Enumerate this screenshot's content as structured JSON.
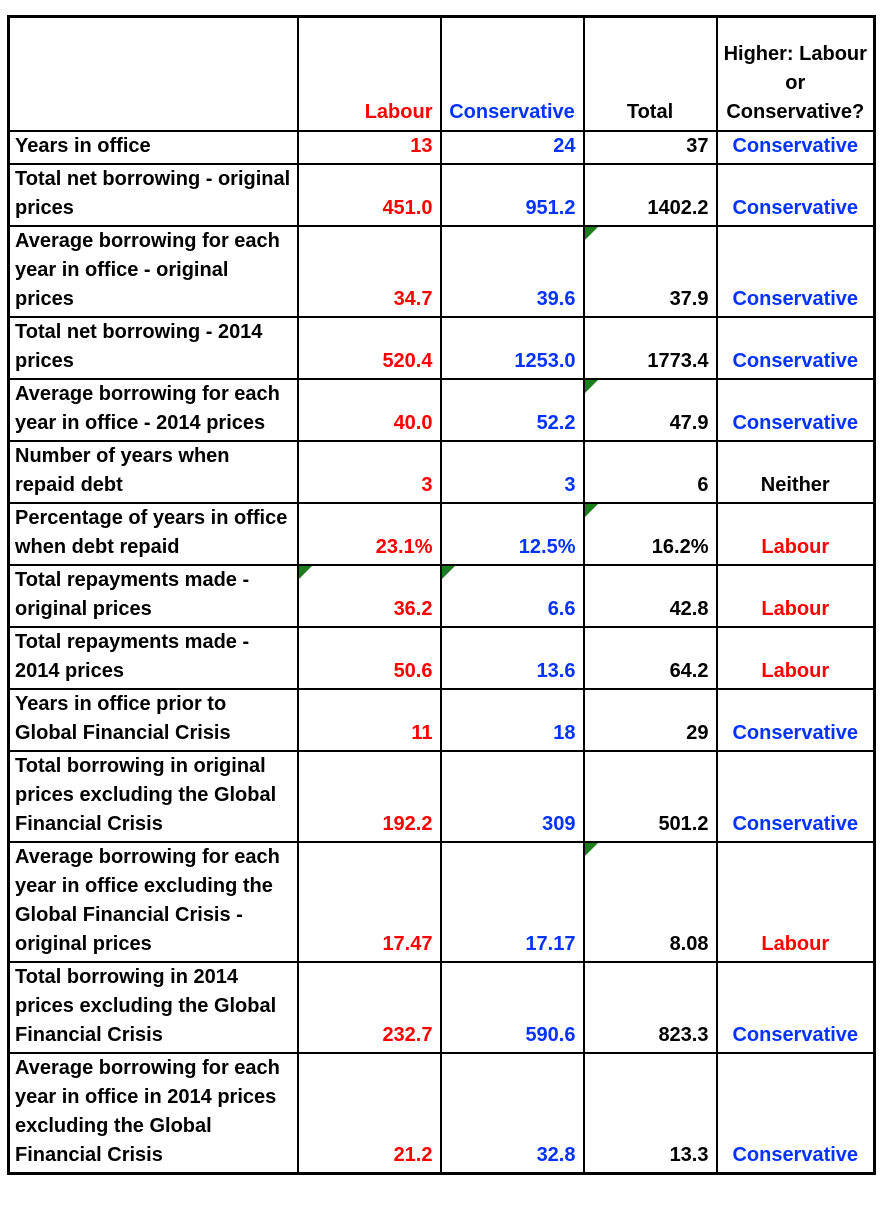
{
  "palette": {
    "labour_red": "#FF0000",
    "conservative_blue": "#0432FF",
    "neutral_black": "#000000",
    "flag_green": "#1E7B1E",
    "border_black": "#000000",
    "background": "#FFFFFF"
  },
  "header": {
    "corner": "",
    "labour": "Labour",
    "conservative": "Conservative",
    "total": "Total",
    "higher": "Higher: Labour or Conservative?"
  },
  "rows": [
    {
      "label": "Years in office",
      "labour": "13",
      "conservative": "24",
      "total": "37",
      "higher": "Conservative",
      "flags": []
    },
    {
      "label": "Total net borrowing - original prices",
      "labour": "451.0",
      "conservative": "951.2",
      "total": "1402.2",
      "higher": "Conservative",
      "flags": []
    },
    {
      "label": "Average borrowing for each year in office - original prices",
      "labour": "34.7",
      "conservative": "39.6",
      "total": "37.9",
      "higher": "Conservative",
      "flags": [
        "total"
      ]
    },
    {
      "label": "Total net borrowing - 2014 prices",
      "labour": "520.4",
      "conservative": "1253.0",
      "total": "1773.4",
      "higher": "Conservative",
      "flags": []
    },
    {
      "label": "Average borrowing for each year in office - 2014 prices",
      "labour": "40.0",
      "conservative": "52.2",
      "total": "47.9",
      "higher": "Conservative",
      "flags": [
        "total"
      ]
    },
    {
      "label": "Number of years when repaid debt",
      "labour": "3",
      "conservative": "3",
      "total": "6",
      "higher": "Neither",
      "flags": []
    },
    {
      "label": "Percentage of years in office when debt repaid",
      "labour": "23.1%",
      "conservative": "12.5%",
      "total": "16.2%",
      "higher": "Labour",
      "flags": [
        "total"
      ]
    },
    {
      "label": "Total repayments made - original prices",
      "labour": "36.2",
      "conservative": "6.6",
      "total": "42.8",
      "higher": "Labour",
      "flags": [
        "labour",
        "conservative"
      ]
    },
    {
      "label": "Total repayments made - 2014 prices",
      "labour": "50.6",
      "conservative": "13.6",
      "total": "64.2",
      "higher": "Labour",
      "flags": []
    },
    {
      "label": "Years in office prior to Global Financial Crisis",
      "labour": "11",
      "conservative": "18",
      "total": "29",
      "higher": "Conservative",
      "flags": []
    },
    {
      "label": "Total borrowing in original prices excluding the Global Financial Crisis",
      "labour": "192.2",
      "conservative": "309",
      "total": "501.2",
      "higher": "Conservative",
      "flags": []
    },
    {
      "label": "Average borrowing for each year in  office excluding the Global Financial Crisis - original prices",
      "labour": "17.47",
      "conservative": "17.17",
      "total": "8.08",
      "higher": "Labour",
      "flags": [
        "total"
      ]
    },
    {
      "label": "Total borrowing in 2014 prices excluding the Global Financial Crisis",
      "labour": "232.7",
      "conservative": "590.6",
      "total": "823.3",
      "higher": "Conservative",
      "flags": []
    },
    {
      "label": "Average borrowing for each year in office in 2014 prices excluding the Global Financial Crisis",
      "labour": "21.2",
      "conservative": "32.8",
      "total": "13.3",
      "higher": "Conservative",
      "flags": []
    }
  ],
  "chart_data": {
    "type": "table",
    "columns": [
      "",
      "Labour",
      "Conservative",
      "Total",
      "Higher: Labour or Conservative?"
    ],
    "rows": [
      [
        "Years in office",
        13,
        24,
        37,
        "Conservative"
      ],
      [
        "Total net borrowing - original prices",
        451.0,
        951.2,
        1402.2,
        "Conservative"
      ],
      [
        "Average borrowing for each year in office - original prices",
        34.7,
        39.6,
        37.9,
        "Conservative"
      ],
      [
        "Total net borrowing - 2014 prices",
        520.4,
        1253.0,
        1773.4,
        "Conservative"
      ],
      [
        "Average borrowing for each year in office - 2014 prices",
        40.0,
        52.2,
        47.9,
        "Conservative"
      ],
      [
        "Number of years when repaid debt",
        3,
        3,
        6,
        "Neither"
      ],
      [
        "Percentage of years in office when debt repaid",
        "23.1%",
        "12.5%",
        "16.2%",
        "Labour"
      ],
      [
        "Total repayments made - original prices",
        36.2,
        6.6,
        42.8,
        "Labour"
      ],
      [
        "Total repayments made - 2014 prices",
        50.6,
        13.6,
        64.2,
        "Labour"
      ],
      [
        "Years in office prior to Global Financial Crisis",
        11,
        18,
        29,
        "Conservative"
      ],
      [
        "Total borrowing in original prices excluding the Global Financial Crisis",
        192.2,
        309,
        501.2,
        "Conservative"
      ],
      [
        "Average borrowing for each year in office excluding the Global Financial Crisis - original prices",
        17.47,
        17.17,
        8.08,
        "Labour"
      ],
      [
        "Total borrowing in 2014 prices excluding the Global Financial Crisis",
        232.7,
        590.6,
        823.3,
        "Conservative"
      ],
      [
        "Average borrowing for each year in office in 2014 prices excluding the Global Financial Crisis",
        21.2,
        32.8,
        13.3,
        "Conservative"
      ]
    ],
    "value_color_coding": {
      "Labour column": "#FF0000",
      "Conservative column": "#0432FF",
      "Total column": "#000000"
    },
    "corner_flag_cells": [
      {
        "row": "Average borrowing for each year in office - original prices",
        "column": "Total"
      },
      {
        "row": "Average borrowing for each year in office - 2014 prices",
        "column": "Total"
      },
      {
        "row": "Percentage of years in office when debt repaid",
        "column": "Total"
      },
      {
        "row": "Total repayments made - original prices",
        "column": "Labour"
      },
      {
        "row": "Total repayments made - original prices",
        "column": "Conservative"
      },
      {
        "row": "Average borrowing for each year in office excluding the Global Financial Crisis - original prices",
        "column": "Total"
      }
    ]
  }
}
